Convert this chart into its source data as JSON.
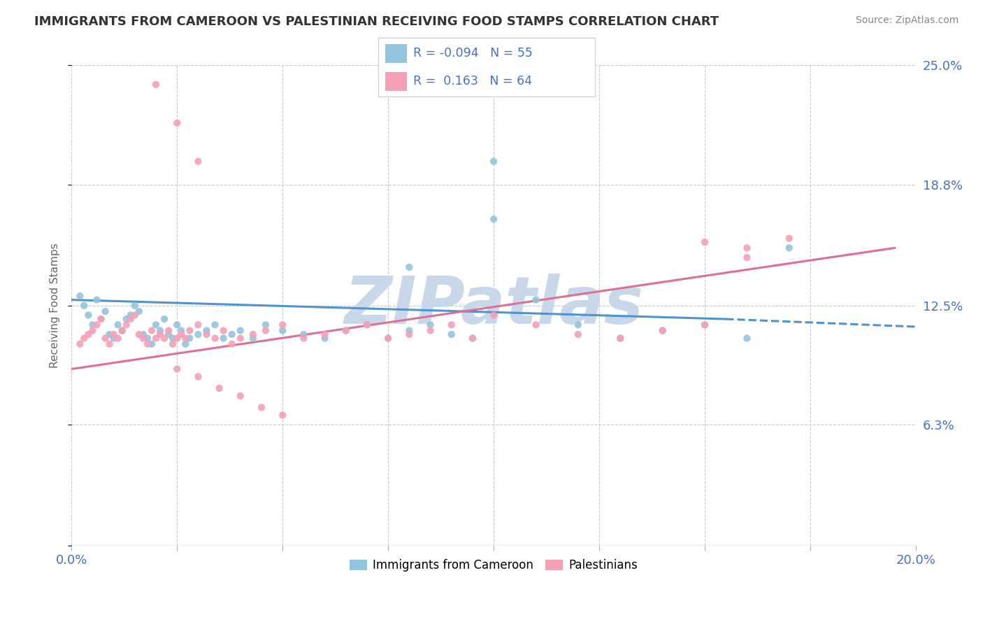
{
  "title": "IMMIGRANTS FROM CAMEROON VS PALESTINIAN RECEIVING FOOD STAMPS CORRELATION CHART",
  "source": "Source: ZipAtlas.com",
  "ylabel": "Receiving Food Stamps",
  "legend_label1": "Immigrants from Cameroon",
  "legend_label2": "Palestinians",
  "R1": -0.094,
  "N1": 55,
  "R2": 0.163,
  "N2": 64,
  "color1": "#92c5de",
  "color2": "#f4a0b5",
  "trendline1_color": "#4d94d0",
  "trendline2_color": "#e07090",
  "xlim": [
    0.0,
    0.2
  ],
  "ylim": [
    0.0,
    0.25
  ],
  "yticks": [
    0.0,
    0.063,
    0.125,
    0.188,
    0.25
  ],
  "ytick_labels": [
    "",
    "6.3%",
    "12.5%",
    "18.8%",
    "25.0%"
  ],
  "xtick_labels_show": [
    "0.0%",
    "20.0%"
  ],
  "xticks_show_pos": [
    0.0,
    0.2
  ],
  "xticks_minor": [
    0.025,
    0.05,
    0.075,
    0.1,
    0.125,
    0.15,
    0.175
  ],
  "watermark": "ZIPatlas",
  "watermark_color": "#c8d8ea",
  "background_color": "#ffffff",
  "grid_color": "#c8c8c8",
  "title_color": "#333333",
  "axis_label_color": "#4472c4",
  "scatter1_x": [
    0.002,
    0.003,
    0.004,
    0.005,
    0.006,
    0.007,
    0.008,
    0.009,
    0.01,
    0.011,
    0.012,
    0.013,
    0.014,
    0.015,
    0.016,
    0.017,
    0.018,
    0.019,
    0.02,
    0.021,
    0.022,
    0.023,
    0.024,
    0.025,
    0.026,
    0.027,
    0.028,
    0.03,
    0.032,
    0.034,
    0.036,
    0.038,
    0.04,
    0.043,
    0.046,
    0.05,
    0.055,
    0.06,
    0.065,
    0.07,
    0.075,
    0.08,
    0.085,
    0.09,
    0.095,
    0.1,
    0.11,
    0.12,
    0.13,
    0.14,
    0.15,
    0.16,
    0.17,
    0.08,
    0.1
  ],
  "scatter1_y": [
    0.13,
    0.125,
    0.12,
    0.115,
    0.128,
    0.118,
    0.122,
    0.11,
    0.108,
    0.115,
    0.112,
    0.118,
    0.12,
    0.125,
    0.122,
    0.11,
    0.108,
    0.105,
    0.115,
    0.112,
    0.118,
    0.11,
    0.108,
    0.115,
    0.112,
    0.105,
    0.108,
    0.11,
    0.112,
    0.115,
    0.108,
    0.11,
    0.112,
    0.108,
    0.115,
    0.112,
    0.11,
    0.108,
    0.112,
    0.115,
    0.108,
    0.112,
    0.115,
    0.11,
    0.108,
    0.17,
    0.128,
    0.115,
    0.108,
    0.112,
    0.115,
    0.108,
    0.155,
    0.145,
    0.2
  ],
  "scatter2_x": [
    0.002,
    0.003,
    0.004,
    0.005,
    0.006,
    0.007,
    0.008,
    0.009,
    0.01,
    0.011,
    0.012,
    0.013,
    0.014,
    0.015,
    0.016,
    0.017,
    0.018,
    0.019,
    0.02,
    0.021,
    0.022,
    0.023,
    0.024,
    0.025,
    0.026,
    0.027,
    0.028,
    0.03,
    0.032,
    0.034,
    0.036,
    0.038,
    0.04,
    0.043,
    0.046,
    0.05,
    0.055,
    0.06,
    0.065,
    0.07,
    0.075,
    0.08,
    0.085,
    0.09,
    0.095,
    0.1,
    0.11,
    0.12,
    0.13,
    0.14,
    0.15,
    0.16,
    0.17,
    0.025,
    0.03,
    0.035,
    0.04,
    0.045,
    0.05,
    0.15,
    0.16,
    0.02,
    0.025,
    0.03
  ],
  "scatter2_y": [
    0.105,
    0.108,
    0.11,
    0.112,
    0.115,
    0.118,
    0.108,
    0.105,
    0.11,
    0.108,
    0.112,
    0.115,
    0.118,
    0.12,
    0.11,
    0.108,
    0.105,
    0.112,
    0.108,
    0.11,
    0.108,
    0.112,
    0.105,
    0.108,
    0.11,
    0.108,
    0.112,
    0.115,
    0.11,
    0.108,
    0.112,
    0.105,
    0.108,
    0.11,
    0.112,
    0.115,
    0.108,
    0.11,
    0.112,
    0.115,
    0.108,
    0.11,
    0.112,
    0.115,
    0.108,
    0.12,
    0.115,
    0.11,
    0.108,
    0.112,
    0.115,
    0.155,
    0.16,
    0.092,
    0.088,
    0.082,
    0.078,
    0.072,
    0.068,
    0.158,
    0.15,
    0.24,
    0.22,
    0.2
  ],
  "trendline1_x": [
    0.0,
    0.155,
    0.2
  ],
  "trendline1_y": [
    0.128,
    0.118,
    0.114
  ],
  "trendline1_dash_from": 0.155,
  "trendline2_x": [
    0.0,
    0.195
  ],
  "trendline2_y": [
    0.092,
    0.155
  ]
}
